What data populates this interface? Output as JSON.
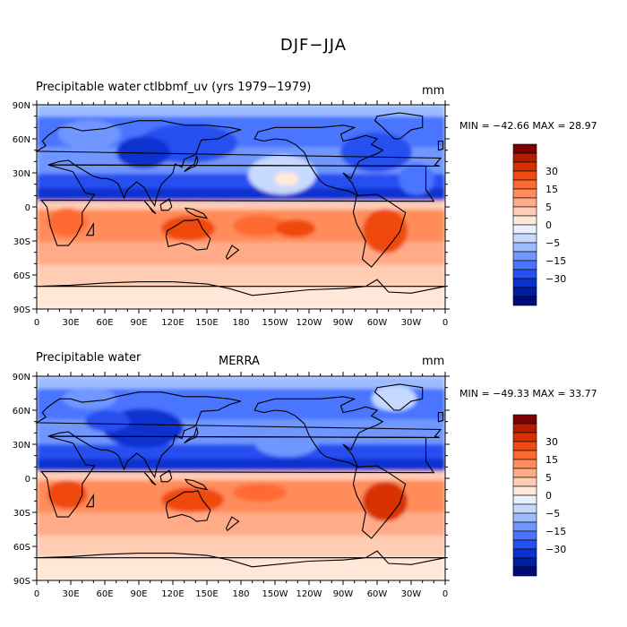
{
  "title": "DJF−JJA",
  "panels": [
    {
      "variable": "Precipitable water",
      "source": "ctlbbmf_uv (yrs 1979−1979)",
      "units": "mm",
      "stats": "MIN = −42.66  MAX =  28.97"
    },
    {
      "variable": "Precipitable water",
      "source": "MERRA",
      "units": "mm",
      "stats": "MIN = −49.33  MAX =  33.77"
    }
  ],
  "colorbar": {
    "labels": [
      "30",
      "15",
      "5",
      "0",
      "−5",
      "−15",
      "−30"
    ],
    "colors": [
      "#7f0000",
      "#b21e00",
      "#d73000",
      "#f04a10",
      "#ff6a30",
      "#ff8c5a",
      "#ffab88",
      "#ffcdb4",
      "#ffe8d8",
      "#e8f0ff",
      "#c6d9ff",
      "#9dbcff",
      "#7097ff",
      "#4a74ff",
      "#2650f0",
      "#0a30d0",
      "#001ea0",
      "#000a78"
    ]
  },
  "chart_data": [
    {
      "type": "heatmap",
      "title": "DJF−JJA",
      "subtitle": "Precipitable water  ctlbbmf_uv (yrs 1979−1979)",
      "units": "mm",
      "x_ticks": [
        "0",
        "30E",
        "60E",
        "90E",
        "120E",
        "150E",
        "180",
        "150W",
        "120W",
        "90W",
        "60W",
        "30W",
        "0"
      ],
      "y_ticks": [
        "90N",
        "60N",
        "30N",
        "0",
        "30S",
        "60S",
        "90S"
      ],
      "colorbar_labels": [
        "30",
        "15",
        "5",
        "0",
        "−5",
        "−15",
        "−30"
      ],
      "min": -42.66,
      "max": 28.97,
      "zonal_mean_pattern": {
        "lat": [
          90,
          60,
          30,
          15,
          0,
          -15,
          -30,
          -60,
          -90
        ],
        "value": [
          -5,
          -22,
          -15,
          -30,
          8,
          20,
          10,
          5,
          2
        ]
      }
    },
    {
      "type": "heatmap",
      "title": "DJF−JJA",
      "subtitle": "Precipitable water  MERRA",
      "units": "mm",
      "x_ticks": [
        "0",
        "30E",
        "60E",
        "90E",
        "120E",
        "150E",
        "180",
        "150W",
        "120W",
        "90W",
        "60W",
        "30W",
        "0"
      ],
      "y_ticks": [
        "90N",
        "60N",
        "30N",
        "0",
        "30S",
        "60S",
        "90S"
      ],
      "colorbar_labels": [
        "30",
        "15",
        "5",
        "0",
        "−5",
        "−15",
        "−30"
      ],
      "min": -49.33,
      "max": 33.77,
      "zonal_mean_pattern": {
        "lat": [
          90,
          60,
          30,
          15,
          0,
          -15,
          -30,
          -60,
          -90
        ],
        "value": [
          -5,
          -22,
          -18,
          -30,
          8,
          22,
          10,
          5,
          2
        ]
      }
    }
  ]
}
